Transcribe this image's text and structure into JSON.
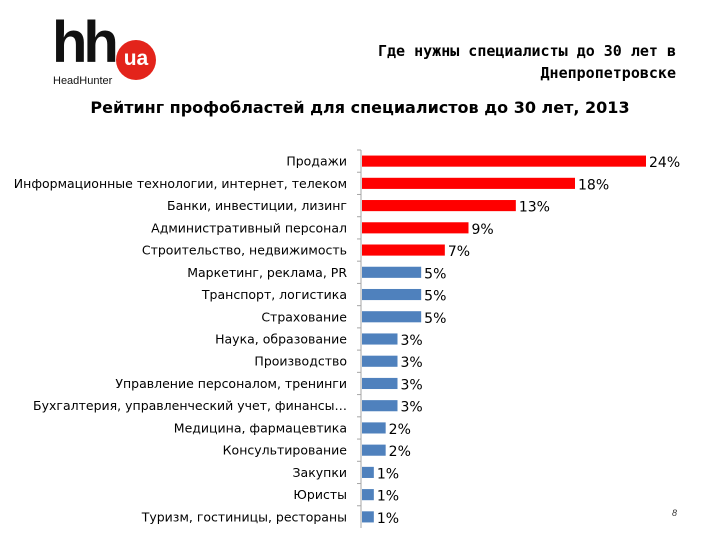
{
  "logo": {
    "mark": "hh",
    "badge": "ua",
    "brand": "HeadHunter"
  },
  "header": {
    "line1": "Где нужны специалисты до 30 лет в",
    "line2": "Днепропетровске"
  },
  "page_number": "8",
  "colors": {
    "highlight": "#ff0000",
    "default": "#4f81bd",
    "logo_red": "#e3241b"
  },
  "chart_data": {
    "type": "bar",
    "orientation": "horizontal",
    "title": "Рейтинг профобластей для специалистов до 30 лет, 2013",
    "categories": [
      "Продажи",
      "Информационные технологии, интернет, телеком",
      "Банки, инвестиции, лизинг",
      "Административный персонал",
      "Строительство, недвижимость",
      "Маркетинг, реклама, PR",
      "Транспорт, логистика",
      "Страхование",
      "Наука, образование",
      "Производство",
      "Управление персоналом, тренинги",
      "Бухгалтерия, управленческий учет, финансы…",
      "Медицина, фармацевтика",
      "Консультирование",
      "Закупки",
      "Юристы",
      "Туризм, гостиницы, рестораны"
    ],
    "values": [
      24,
      18,
      13,
      9,
      7,
      5,
      5,
      5,
      3,
      3,
      3,
      3,
      2,
      2,
      1,
      1,
      1
    ],
    "data_labels": [
      "24%",
      "18%",
      "13%",
      "9%",
      "7%",
      "5%",
      "5%",
      "5%",
      "3%",
      "3%",
      "3%",
      "3%",
      "2%",
      "2%",
      "1%",
      "1%",
      "1%"
    ],
    "highlighted_count": 5,
    "xlim": [
      0,
      24
    ],
    "grid": false,
    "legend": "none"
  }
}
